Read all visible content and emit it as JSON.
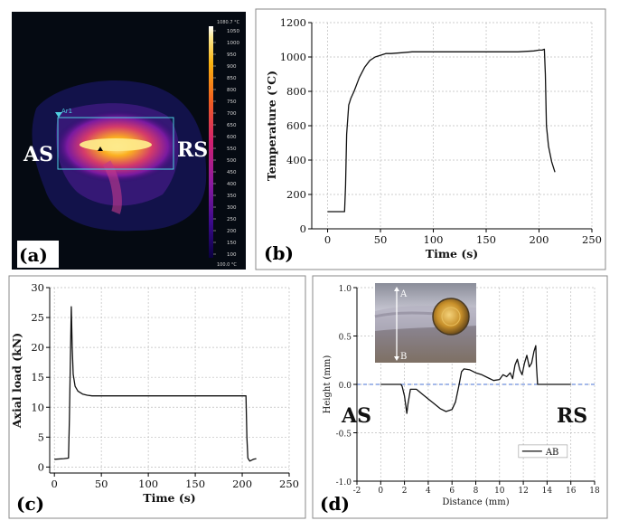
{
  "figure": {
    "panel_a": {
      "tag": "(a)",
      "left_label": "AS",
      "right_label": "RS",
      "roi_label": "Ar1",
      "colorbar_ticks": [
        "1050",
        "1000",
        "950",
        "900",
        "850",
        "800",
        "750",
        "700",
        "650",
        "600",
        "550",
        "500",
        "450",
        "400",
        "350",
        "300",
        "250",
        "200",
        "150",
        "100"
      ],
      "colorbar_max_label": "1080.7 °C",
      "colorbar_min_label": "100.0 °C"
    },
    "panel_b": {
      "tag": "(b)"
    },
    "panel_c": {
      "tag": "(c)"
    },
    "panel_d": {
      "tag": "(d)",
      "left_label": "AS",
      "right_label": "RS",
      "inset_point_a": "A",
      "inset_point_b": "B",
      "zero_line_color": "#4a73d6"
    }
  },
  "chart_data": [
    {
      "panel": "b",
      "type": "line",
      "xlabel": "Time (s)",
      "ylabel": "Temperature (°C)",
      "xlim": [
        -15,
        250
      ],
      "ylim": [
        0,
        1200
      ],
      "xticks": [
        0,
        50,
        100,
        150,
        200,
        250
      ],
      "yticks": [
        0,
        200,
        400,
        600,
        800,
        1000,
        1200
      ],
      "grid": true,
      "series": [
        {
          "name": "Temperature",
          "color": "#111111",
          "x": [
            0,
            16,
            17,
            18,
            20,
            22,
            25,
            30,
            35,
            40,
            45,
            50,
            55,
            60,
            70,
            80,
            100,
            120,
            140,
            160,
            180,
            195,
            200,
            203,
            205,
            206,
            207,
            209,
            212,
            215
          ],
          "y": [
            100,
            100,
            250,
            550,
            720,
            760,
            800,
            880,
            940,
            980,
            1000,
            1010,
            1020,
            1020,
            1025,
            1030,
            1030,
            1030,
            1030,
            1030,
            1030,
            1035,
            1040,
            1040,
            1045,
            900,
            600,
            480,
            390,
            330
          ]
        }
      ]
    },
    {
      "panel": "c",
      "type": "line",
      "xlabel": "Time (s)",
      "ylabel": "Axial load (kN)",
      "xlim": [
        -5,
        250
      ],
      "ylim": [
        -1,
        30
      ],
      "xticks": [
        0,
        50,
        100,
        150,
        200,
        250
      ],
      "yticks": [
        0,
        5,
        10,
        15,
        20,
        25,
        30
      ],
      "grid": true,
      "series": [
        {
          "name": "Axial load",
          "color": "#111111",
          "x": [
            0,
            10,
            15,
            16,
            17,
            18,
            19,
            20,
            22,
            25,
            30,
            35,
            40,
            60,
            100,
            150,
            200,
            204,
            205,
            206,
            208,
            212,
            215
          ],
          "y": [
            1.3,
            1.4,
            1.5,
            8,
            18,
            26.8,
            20,
            15.5,
            13.5,
            12.7,
            12.2,
            12.0,
            11.9,
            11.9,
            11.9,
            11.9,
            11.9,
            11.9,
            5,
            1.5,
            1.0,
            1.3,
            1.4
          ]
        }
      ]
    },
    {
      "panel": "d",
      "type": "line",
      "xlabel": "Distance (mm)",
      "ylabel": "Height (mm)",
      "xlim": [
        -2,
        18
      ],
      "ylim": [
        -1.0,
        1.0
      ],
      "xticks": [
        -2,
        0,
        2,
        4,
        6,
        8,
        10,
        12,
        14,
        16,
        18
      ],
      "yticks": [
        -1.0,
        -0.5,
        0.0,
        0.5,
        1.0
      ],
      "legend": "AB",
      "legend_position": "bottom-right",
      "grid": true,
      "series": [
        {
          "name": "AB",
          "color": "#111111",
          "x": [
            0,
            1.7,
            1.8,
            2.0,
            2.2,
            2.3,
            2.5,
            3.0,
            3.5,
            4.0,
            4.5,
            5.0,
            5.5,
            6.0,
            6.3,
            6.6,
            6.8,
            7.0,
            7.5,
            8.0,
            8.5,
            9.0,
            9.5,
            10.0,
            10.3,
            10.6,
            10.9,
            11.1,
            11.3,
            11.5,
            11.7,
            11.9,
            12.1,
            12.3,
            12.5,
            12.7,
            12.9,
            13.05,
            13.1,
            13.2,
            14,
            16
          ],
          "y": [
            0,
            0,
            -0.02,
            -0.12,
            -0.3,
            -0.2,
            -0.05,
            -0.05,
            -0.1,
            -0.15,
            -0.2,
            -0.25,
            -0.28,
            -0.26,
            -0.18,
            0.0,
            0.13,
            0.16,
            0.15,
            0.12,
            0.1,
            0.07,
            0.04,
            0.05,
            0.1,
            0.08,
            0.12,
            0.06,
            0.2,
            0.26,
            0.15,
            0.1,
            0.22,
            0.3,
            0.18,
            0.22,
            0.34,
            0.4,
            0.2,
            0.0,
            0.0,
            0.0
          ]
        }
      ]
    }
  ]
}
